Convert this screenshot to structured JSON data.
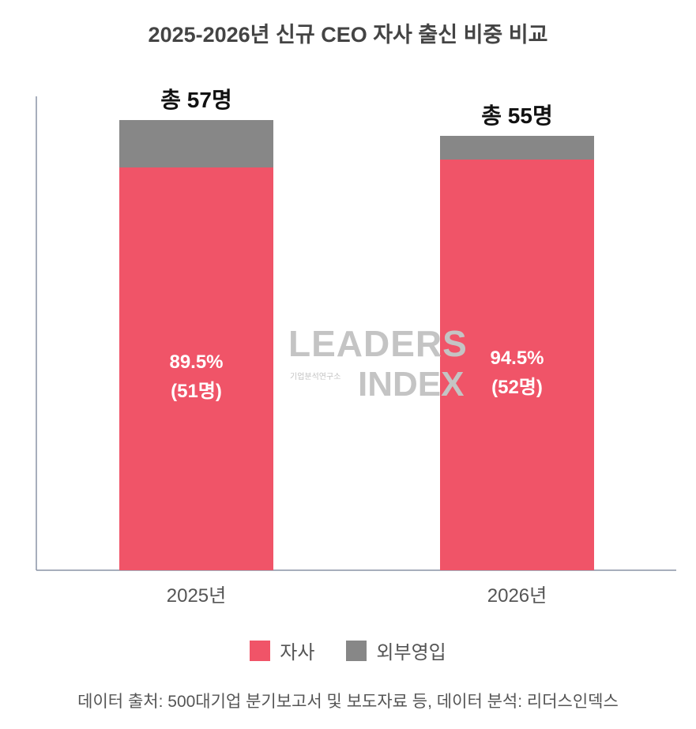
{
  "chart_data": {
    "type": "bar",
    "stacked": true,
    "title": "2025-2026년 신규 CEO 자사 출신 비중 비교",
    "categories": [
      "2025년",
      "2026년"
    ],
    "series": [
      {
        "name": "자사",
        "values": [
          51,
          52
        ],
        "color": "#F05468"
      },
      {
        "name": "외부영입",
        "values": [
          6,
          3
        ],
        "color": "#878787"
      }
    ],
    "totals": [
      57,
      55
    ],
    "total_labels": [
      "총 57명",
      "총 55명"
    ],
    "bar_labels_pct": [
      "89.5%",
      "94.5%"
    ],
    "bar_labels_count": [
      "(51명)",
      "(52명)"
    ],
    "ylim": [
      0,
      60
    ],
    "grid": false,
    "legend": "bottom",
    "source": "데이터 출처: 500대기업 분기보고서 및 보도자료 등, 데이터 분석: 리더스인덱스"
  },
  "watermark": {
    "line1": "LEADERS",
    "line2": "기업분석연구소",
    "line3": "INDEX"
  }
}
